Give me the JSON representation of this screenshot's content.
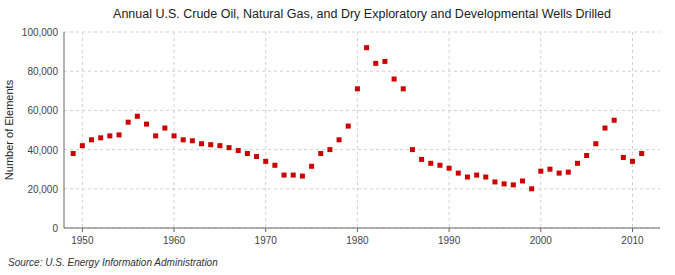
{
  "chart_data": {
    "type": "scatter",
    "title": "Annual U.S. Crude Oil, Natural Gas, and Dry Exploratory and Developmental Wells Drilled",
    "ylabel": "Number of Elements",
    "source": "Source: U.S. Energy Information Administration",
    "x": [
      1949,
      1950,
      1951,
      1952,
      1953,
      1954,
      1955,
      1956,
      1957,
      1958,
      1959,
      1960,
      1961,
      1962,
      1963,
      1964,
      1965,
      1966,
      1967,
      1968,
      1969,
      1970,
      1971,
      1972,
      1973,
      1974,
      1975,
      1976,
      1977,
      1978,
      1979,
      1980,
      1981,
      1982,
      1983,
      1984,
      1985,
      1986,
      1987,
      1988,
      1989,
      1990,
      1991,
      1992,
      1993,
      1994,
      1995,
      1996,
      1997,
      1998,
      1999,
      2000,
      2001,
      2002,
      2003,
      2004,
      2005,
      2006,
      2007,
      2008,
      2009,
      2010,
      2011
    ],
    "values": [
      38000,
      42000,
      45000,
      46000,
      47000,
      47500,
      54000,
      57000,
      53000,
      47000,
      51000,
      47000,
      45000,
      44500,
      43000,
      42500,
      42000,
      41000,
      39500,
      38000,
      36500,
      34000,
      32000,
      27000,
      27000,
      26500,
      31500,
      38000,
      40000,
      45000,
      52000,
      71000,
      92000,
      84000,
      85000,
      76000,
      71000,
      40000,
      35000,
      33000,
      32000,
      30500,
      28000,
      26000,
      27000,
      26000,
      23500,
      22500,
      22000,
      24000,
      20000,
      29000,
      30000,
      28000,
      28500,
      33000,
      37000,
      43000,
      51000,
      55000,
      36000,
      34000,
      38000
    ],
    "color": "#cc0000",
    "marker": "square",
    "xlim": [
      1948,
      2013
    ],
    "ylim": [
      0,
      100000
    ],
    "xticks": [
      1950,
      1960,
      1970,
      1980,
      1990,
      2000,
      2010
    ],
    "yticks": [
      0,
      {
        "value": 20000,
        "label": "20,000"
      },
      {
        "value": 40000,
        "label": "40,000"
      },
      {
        "value": 60000,
        "label": "60,000"
      },
      {
        "value": 80000,
        "label": "80,000"
      },
      {
        "value": 100000,
        "label": "100,000"
      }
    ],
    "grid": true
  }
}
